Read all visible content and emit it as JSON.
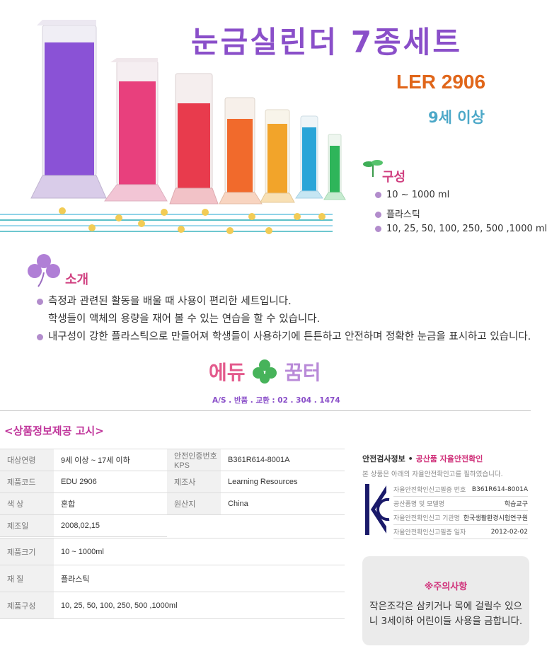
{
  "hero": {
    "title": "눈금실린더 7종세트",
    "code": "LER 2906",
    "age": "9세 이상"
  },
  "composition": {
    "heading": "구성",
    "items": [
      "10 ~ 1000 ml",
      "플라스틱",
      "10, 25, 50, 100, 250, 500 ,1000 ml"
    ]
  },
  "intro": {
    "heading": "소개",
    "lines": [
      "측정과 관련된 활동을 배울 때 사용이 편리한 세트입니다.",
      "학생들이 액체의 용량을 재어 볼 수 있는 연습을 할 수 있습니다.",
      "내구성이 강한 플라스틱으로 만들어져 학생들이 사용하기에 튼튼하고 안전하며 정확한 눈금을 표시하고 있습니다."
    ]
  },
  "brand": {
    "logo_left": "에듀",
    "logo_right": "꿈터",
    "as_line": "A/S . 반품 . 교환 : 02 . 304 . 1474"
  },
  "info": {
    "heading": "<상품정보제공 고시>",
    "rows": [
      {
        "k1": "대상연령",
        "v1": "9세 이상 ~ 17세 이하",
        "k2": "안전인증번호KPS",
        "v2": "B361R614-8001A"
      },
      {
        "k1": "제품코드",
        "v1": "EDU 2906",
        "k2": "제조사",
        "v2": "Learning Resources"
      },
      {
        "k1": "색 상",
        "v1": "혼합",
        "k2": "원산지",
        "v2": "China"
      },
      {
        "k1": "제조일",
        "v1": "2008,02,15"
      }
    ],
    "rows2": [
      {
        "k": "제품크기",
        "v": "10 ~ 1000ml"
      },
      {
        "k": "재 질",
        "v": "플라스틱"
      },
      {
        "k": "제품구성",
        "v": "10, 25, 50, 100, 250, 500 ,1000ml"
      }
    ]
  },
  "safety": {
    "title_prefix": "안전검사정보",
    "title_sep": "•",
    "title_mark": "공산품 자율안전확인",
    "desc": "본 상품은 아래의 자율안전확인고를 필하였습니다.",
    "rows": [
      {
        "k": "자율안전확인신고필증 번호",
        "v": "B361R614-8001A"
      },
      {
        "k": "공산품명 및 모델명",
        "v": "학습교구"
      },
      {
        "k": "자율안전확인신고 기관명",
        "v": "한국생활환경시험연구원"
      },
      {
        "k": "자율안전확인신고필증 일자",
        "v": "2012-02-02"
      }
    ]
  },
  "caution": {
    "title": "※주의사항",
    "line1": "작은조각은 삼키거나 목에 걸릴수 있으",
    "line2": "니 3세이하 어린이들 사용을 금합니다."
  },
  "colors": {
    "title_purple": "#8a4fc9",
    "code_orange": "#e0661a",
    "age_blue": "#4ca8c8",
    "heading_pink": "#d04080",
    "cylinders": [
      "#8a52d6",
      "#e8407d",
      "#e83b4d",
      "#f16a2c",
      "#f2a42a",
      "#2aa5d8",
      "#2eb55a"
    ]
  }
}
